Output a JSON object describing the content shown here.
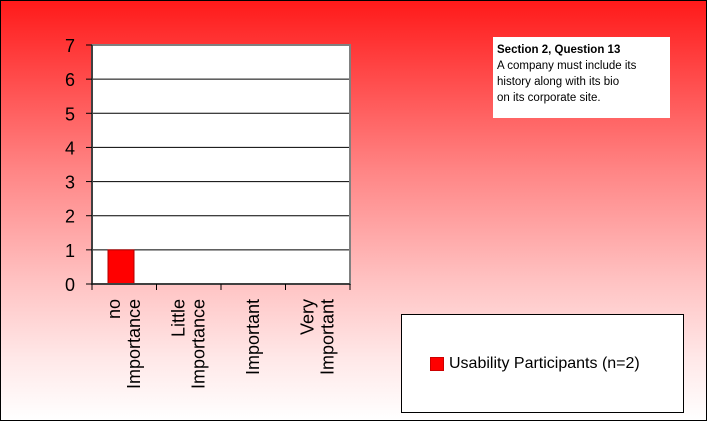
{
  "chart_data": {
    "type": "bar",
    "title": "",
    "xlabel": "",
    "ylabel": "",
    "categories": [
      [
        "no",
        "Importance"
      ],
      [
        "Little",
        "Importance"
      ],
      [
        "Important"
      ],
      [
        "Very",
        "Important"
      ]
    ],
    "series": [
      {
        "name": "Usability Participants (n=2)",
        "values": [
          1,
          0,
          0,
          0
        ],
        "color": "#ff0000"
      }
    ],
    "ylim": [
      0,
      7
    ],
    "yticks": [
      "0",
      "1",
      "2",
      "3",
      "4",
      "5",
      "6",
      "7"
    ],
    "grid": true,
    "legend_position": "bottom-right"
  },
  "note": {
    "title": "Section 2, Question 13",
    "lines": [
      "A company must include its",
      "history along with its bio",
      "on its corporate site."
    ]
  },
  "colors": {
    "bar": "#ff0000",
    "background_top": "#ff1a1a",
    "background_bottom": "#ffffff"
  }
}
